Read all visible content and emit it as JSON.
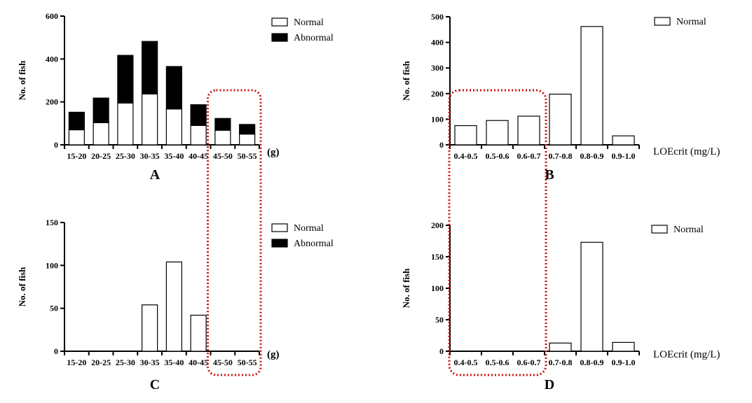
{
  "chart_data": [
    {
      "id": "A",
      "type": "bar",
      "stacked": true,
      "panel_label": "A",
      "ylabel": "No. of fish",
      "x_unit": "(g)",
      "categories": [
        "15-20",
        "20-25",
        "25-30",
        "30-35",
        "35-40",
        "40-45",
        "45-50",
        "50-55"
      ],
      "series": [
        {
          "name": "Normal",
          "color": "#ffffff",
          "values": [
            70,
            103,
            195,
            237,
            167,
            90,
            68,
            50
          ]
        },
        {
          "name": "Abnormal",
          "color": "#000000",
          "values": [
            82,
            115,
            222,
            245,
            198,
            97,
            55,
            45
          ]
        }
      ],
      "ylim": [
        0,
        600
      ],
      "yticks": [
        0,
        200,
        400,
        600
      ],
      "legend": [
        "Normal",
        "Abnormal"
      ],
      "highlight": {
        "from": "45-50",
        "to": "50-55"
      }
    },
    {
      "id": "B",
      "type": "bar",
      "stacked": false,
      "panel_label": "B",
      "ylabel": "No. of fish",
      "x_unit": "LOEcrit (mg/L)",
      "categories": [
        "0.4-0.5",
        "0.5-0.6",
        "0.6-0.7",
        "0.7-0.8",
        "0.8-0.9",
        "0.9-1.0"
      ],
      "series": [
        {
          "name": "Normal",
          "color": "#ffffff",
          "values": [
            75,
            95,
            112,
            198,
            462,
            35
          ]
        }
      ],
      "ylim": [
        0,
        500
      ],
      "yticks": [
        0,
        100,
        200,
        300,
        400,
        500
      ],
      "legend": [
        "Normal"
      ],
      "highlight": {
        "from": "0.4-0.5",
        "to": "0.6-0.7"
      }
    },
    {
      "id": "C",
      "type": "bar",
      "stacked": true,
      "panel_label": "C",
      "ylabel": "No. of fish",
      "x_unit": "(g)",
      "categories": [
        "15-20",
        "20-25",
        "25-30",
        "30-35",
        "35-40",
        "40-45",
        "45-50",
        "50-55"
      ],
      "series": [
        {
          "name": "Normal",
          "color": "#ffffff",
          "values": [
            0,
            0,
            0,
            54,
            104,
            42,
            0,
            0
          ]
        },
        {
          "name": "Abnormal",
          "color": "#000000",
          "values": [
            0,
            0,
            0,
            0,
            0,
            0,
            0,
            0
          ]
        }
      ],
      "ylim": [
        0,
        150
      ],
      "yticks": [
        0,
        50,
        100,
        150
      ],
      "legend": [
        "Normal",
        "Abnormal"
      ],
      "highlight": {
        "from": "45-50",
        "to": "50-55"
      }
    },
    {
      "id": "D",
      "type": "bar",
      "stacked": false,
      "panel_label": "D",
      "ylabel": "No. of fish",
      "x_unit": "LOEcrit (mg/L)",
      "categories": [
        "0.4-0.5",
        "0.5-0.6",
        "0.6-0.7",
        "0.7-0.8",
        "0.8-0.9",
        "0.9-1.0"
      ],
      "series": [
        {
          "name": "Normal",
          "color": "#ffffff",
          "values": [
            0,
            0,
            0,
            13,
            173,
            14
          ]
        }
      ],
      "ylim": [
        0,
        200
      ],
      "yticks": [
        0,
        50,
        100,
        150,
        200
      ],
      "legend": [
        "Normal"
      ],
      "highlight": {
        "from": "0.4-0.5",
        "to": "0.6-0.7"
      }
    }
  ],
  "colors": {
    "highlight_box": "#cc1111",
    "axis": "#000000"
  }
}
